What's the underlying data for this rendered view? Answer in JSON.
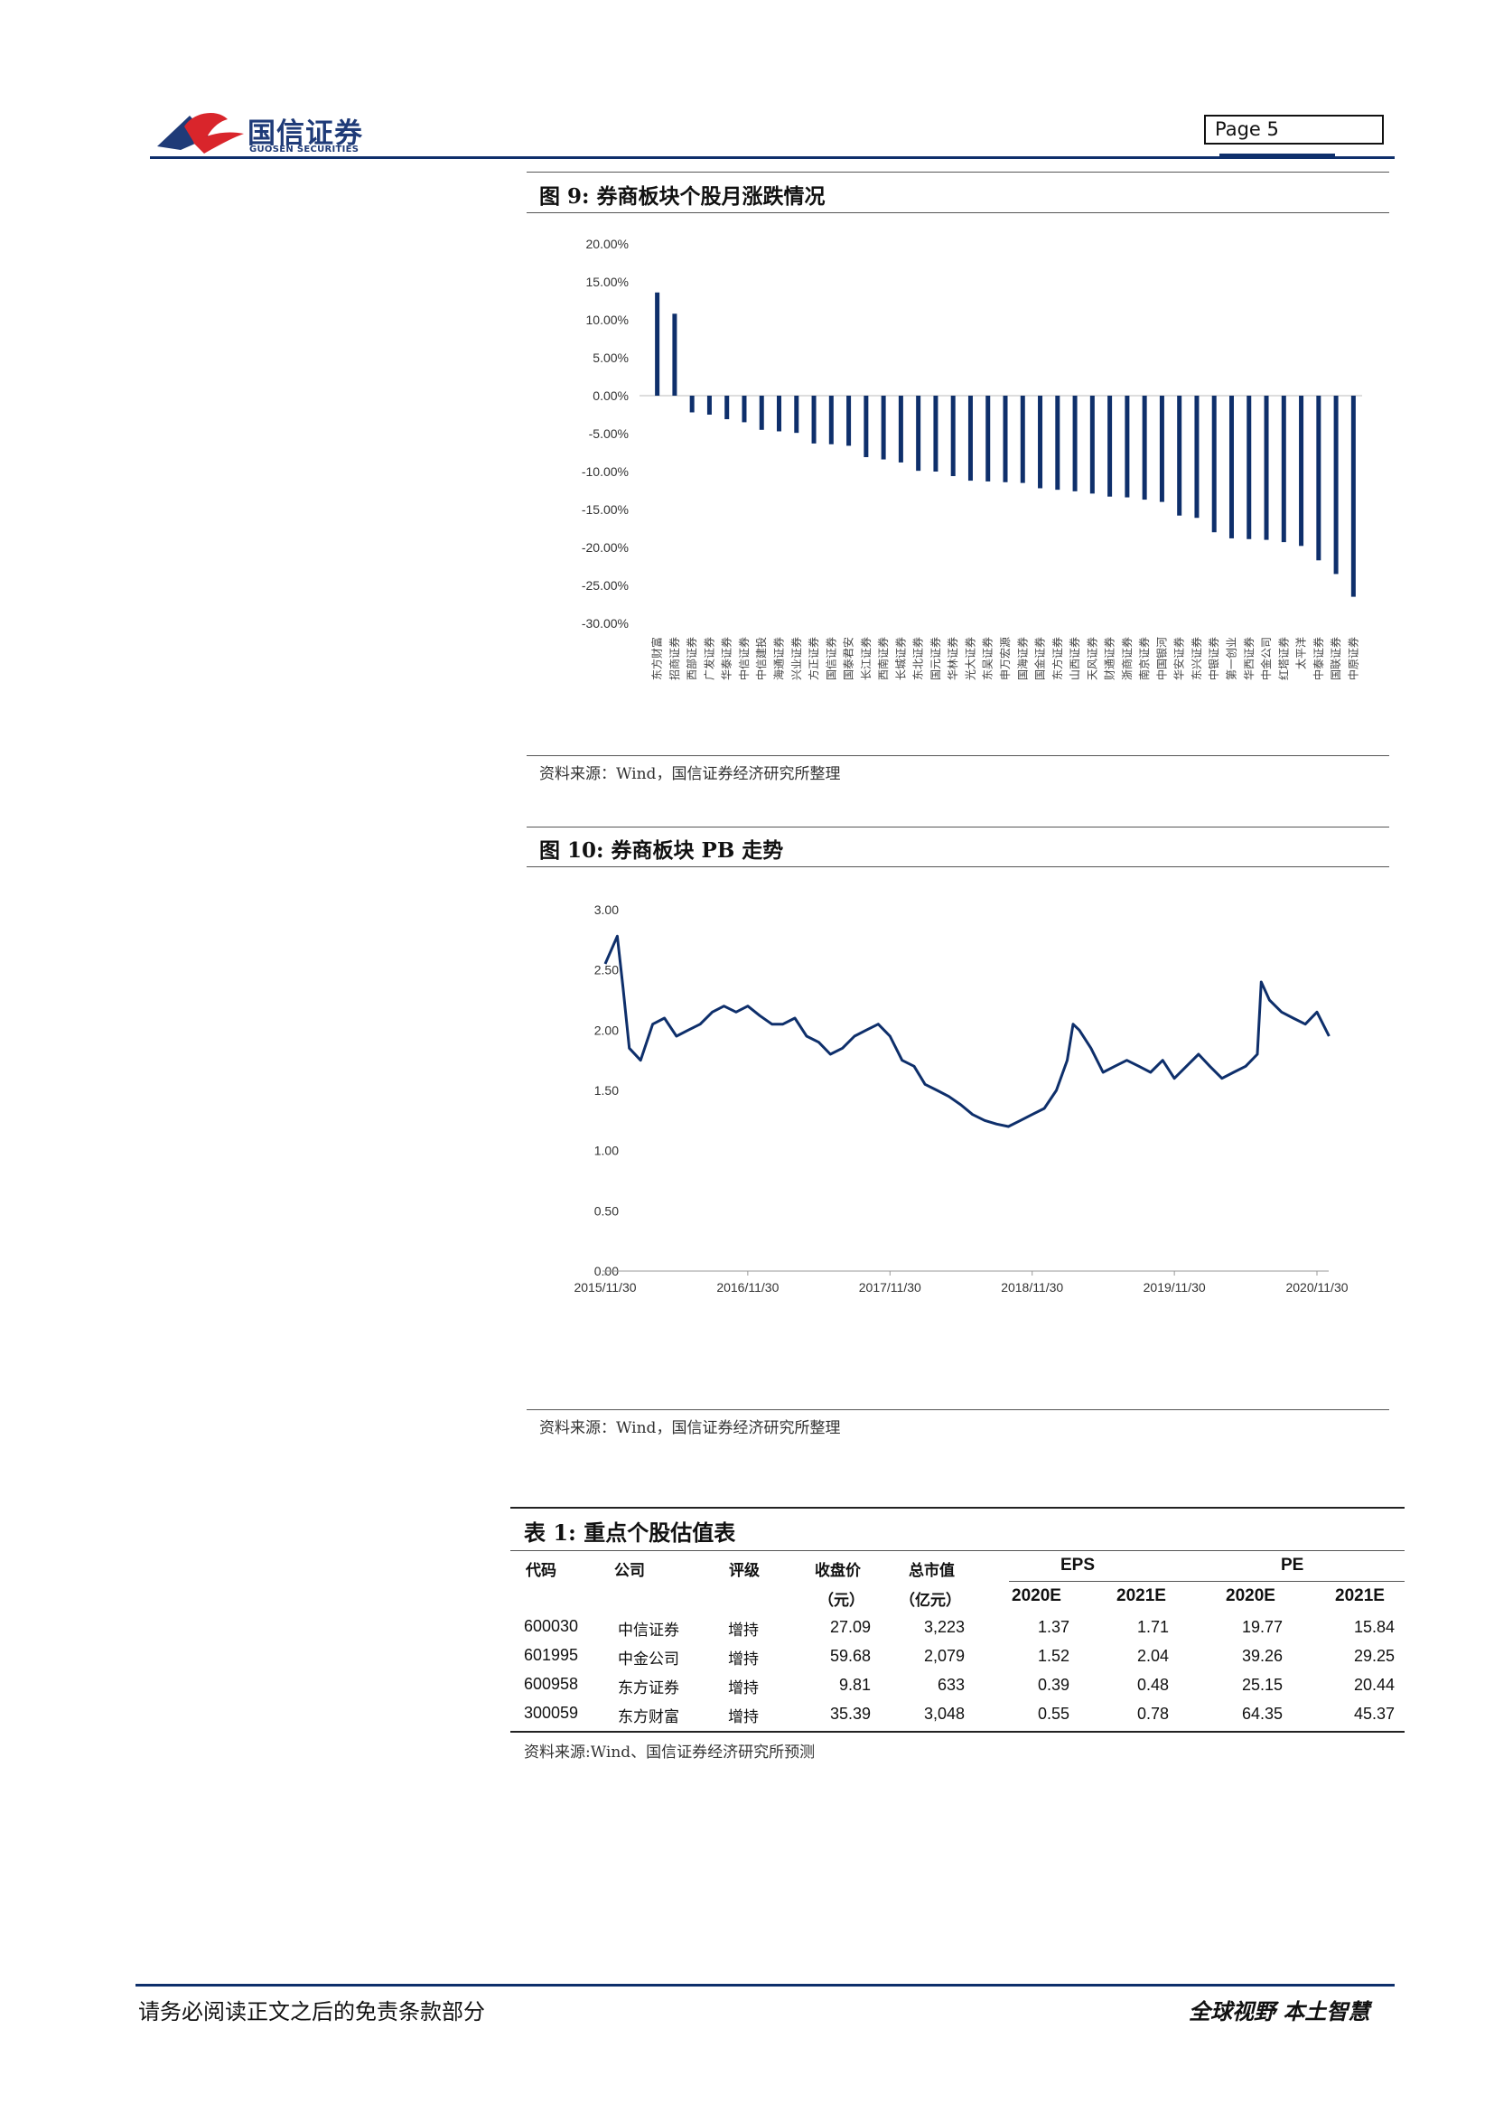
{
  "header": {
    "logo_name": "国信证券",
    "logo_sub": "GUOSEN SECURITIES",
    "page_label": "Page  5",
    "brand_color": "#1f3b78",
    "accent_color": "#d9252b"
  },
  "figure9": {
    "title": "图 9:  券商板块个股月涨跌情况",
    "source": "资料来源：Wind，国信证券经济研究所整理"
  },
  "figure10": {
    "title": "图 10:  券商板块 PB 走势",
    "source": "资料来源：Wind，国信证券经济研究所整理"
  },
  "chart_data": [
    {
      "type": "bar",
      "title": "",
      "ylim": [
        -0.3,
        0.2
      ],
      "yticks": [
        "20.00%",
        "15.00%",
        "10.00%",
        "5.00%",
        "0.00%",
        "-5.00%",
        "-10.00%",
        "-15.00%",
        "-20.00%",
        "-25.00%",
        "-30.00%"
      ],
      "bar_color": "#0e2f6b",
      "categories": [
        "东方财富",
        "招商证券",
        "西部证券",
        "广发证券",
        "华泰证券",
        "中信证券",
        "中信建投",
        "海通证券",
        "兴业证券",
        "方正证券",
        "国信证券",
        "国泰君安",
        "长江证券",
        "西南证券",
        "长城证券",
        "东北证券",
        "国元证券",
        "华林证券",
        "光大证券",
        "东吴证券",
        "申万宏源",
        "国海证券",
        "国金证券",
        "东方证券",
        "山西证券",
        "天风证券",
        "财通证券",
        "浙商证券",
        "南京证券",
        "中国银河",
        "华安证券",
        "东兴证券",
        "中银证券",
        "第一创业",
        "华西证券",
        "中金公司",
        "红塔证券",
        "太平洋",
        "中泰证券",
        "国联证券",
        "中原证券"
      ],
      "values": [
        0.136,
        0.108,
        -0.022,
        -0.025,
        -0.031,
        -0.035,
        -0.045,
        -0.047,
        -0.049,
        -0.063,
        -0.064,
        -0.066,
        -0.081,
        -0.084,
        -0.088,
        -0.099,
        -0.1,
        -0.106,
        -0.112,
        -0.113,
        -0.114,
        -0.115,
        -0.122,
        -0.124,
        -0.126,
        -0.129,
        -0.133,
        -0.134,
        -0.137,
        -0.14,
        -0.158,
        -0.161,
        -0.18,
        -0.188,
        -0.189,
        -0.19,
        -0.193,
        -0.198,
        -0.217,
        -0.235,
        -0.265
      ]
    },
    {
      "type": "line",
      "title": "",
      "ylim": [
        0,
        3
      ],
      "yticks": [
        "3.00",
        "2.50",
        "2.00",
        "1.50",
        "1.00",
        "0.50",
        "0.00"
      ],
      "xticks": [
        "2015/11/30",
        "2016/11/30",
        "2017/11/30",
        "2018/11/30",
        "2019/11/30",
        "2020/11/30"
      ],
      "line_color": "#0e2f6b",
      "x": [
        "2015/11/30",
        "2015/12/31",
        "2016/01/15",
        "2016/01/31",
        "2016/02/29",
        "2016/03/31",
        "2016/04/30",
        "2016/05/31",
        "2016/06/30",
        "2016/07/31",
        "2016/08/31",
        "2016/09/30",
        "2016/10/31",
        "2016/11/30",
        "2016/12/31",
        "2017/01/31",
        "2017/02/28",
        "2017/03/31",
        "2017/04/30",
        "2017/05/31",
        "2017/06/30",
        "2017/07/31",
        "2017/08/31",
        "2017/09/30",
        "2017/10/31",
        "2017/11/30",
        "2017/12/31",
        "2018/01/31",
        "2018/02/28",
        "2018/03/31",
        "2018/04/30",
        "2018/05/31",
        "2018/06/30",
        "2018/07/31",
        "2018/08/31",
        "2018/09/30",
        "2018/10/31",
        "2018/11/30",
        "2018/12/31",
        "2019/01/31",
        "2019/02/28",
        "2019/03/15",
        "2019/03/31",
        "2019/04/30",
        "2019/05/31",
        "2019/06/30",
        "2019/07/31",
        "2019/08/31",
        "2019/09/30",
        "2019/10/31",
        "2019/11/30",
        "2019/12/31",
        "2020/01/31",
        "2020/02/29",
        "2020/03/31",
        "2020/04/30",
        "2020/05/31",
        "2020/06/30",
        "2020/07/10",
        "2020/07/31",
        "2020/08/31",
        "2020/09/30",
        "2020/10/31",
        "2020/11/30",
        "2020/12/31"
      ],
      "y": [
        2.55,
        2.78,
        2.35,
        1.85,
        1.75,
        2.05,
        2.1,
        1.95,
        2.0,
        2.05,
        2.15,
        2.2,
        2.15,
        2.2,
        2.12,
        2.05,
        2.05,
        2.1,
        1.95,
        1.9,
        1.8,
        1.85,
        1.95,
        2.0,
        2.05,
        1.95,
        1.75,
        1.7,
        1.55,
        1.5,
        1.45,
        1.38,
        1.3,
        1.25,
        1.22,
        1.2,
        1.25,
        1.3,
        1.35,
        1.5,
        1.75,
        2.05,
        2.0,
        1.85,
        1.65,
        1.7,
        1.75,
        1.7,
        1.65,
        1.75,
        1.6,
        1.7,
        1.8,
        1.7,
        1.6,
        1.65,
        1.7,
        1.8,
        2.4,
        2.25,
        2.15,
        2.1,
        2.05,
        2.15,
        1.95
      ]
    }
  ],
  "table1": {
    "title": "表 1:  重点个股估值表",
    "headers": {
      "code": "代码",
      "company": "公司",
      "rating": "评级",
      "close": "收盘价",
      "close_unit": "（元）",
      "mcap": "总市值",
      "mcap_unit": "（亿元）",
      "eps": "EPS",
      "pe": "PE",
      "eps_2020": "2020E",
      "eps_2021": "2021E",
      "pe_2020": "2020E",
      "pe_2021": "2021E"
    },
    "rows": [
      {
        "code": "600030",
        "company": "中信证券",
        "rating": "增持",
        "close": "27.09",
        "mcap": "3,223",
        "eps2020": "1.37",
        "eps2021": "1.71",
        "pe2020": "19.77",
        "pe2021": "15.84"
      },
      {
        "code": "601995",
        "company": "中金公司",
        "rating": "增持",
        "close": "59.68",
        "mcap": "2,079",
        "eps2020": "1.52",
        "eps2021": "2.04",
        "pe2020": "39.26",
        "pe2021": "29.25"
      },
      {
        "code": "600958",
        "company": "东方证券",
        "rating": "增持",
        "close": "9.81",
        "mcap": "633",
        "eps2020": "0.39",
        "eps2021": "0.48",
        "pe2020": "25.15",
        "pe2021": "20.44"
      },
      {
        "code": "300059",
        "company": "东方财富",
        "rating": "增持",
        "close": "35.39",
        "mcap": "3,048",
        "eps2020": "0.55",
        "eps2021": "0.78",
        "pe2020": "64.35",
        "pe2021": "45.37"
      }
    ],
    "source": "资料来源:Wind、国信证券经济研究所预测"
  },
  "footer": {
    "disclaimer": "请务必阅读正文之后的免责条款部分",
    "slogan": "全球视野   本土智慧"
  }
}
